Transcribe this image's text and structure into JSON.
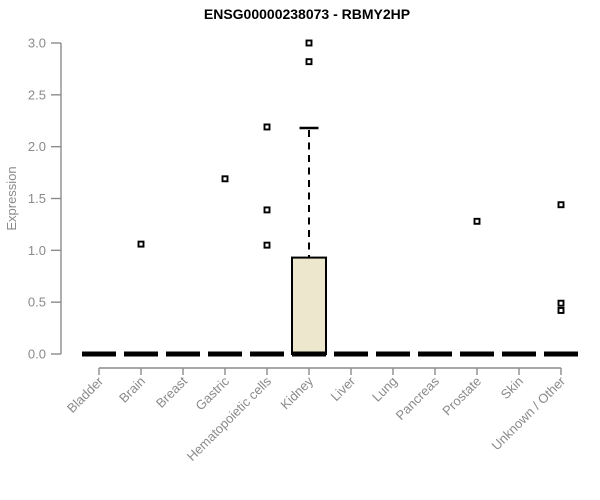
{
  "title": "ENSG00000238073 - RBMY2HP",
  "chart_data": {
    "type": "boxplot",
    "title": "ENSG00000238073 - RBMY2HP",
    "xlabel": "",
    "ylabel": "Expression",
    "ylim": [
      0,
      3.0
    ],
    "yticks": [
      "0.0",
      "0.5",
      "1.0",
      "1.5",
      "2.0",
      "2.5",
      "3.0"
    ],
    "ytick_values": [
      0.0,
      0.5,
      1.0,
      1.5,
      2.0,
      2.5,
      3.0
    ],
    "grid": "off",
    "legend": "none",
    "categories": [
      "Bladder",
      "Brain",
      "Breast",
      "Gastric",
      "Hematopoietic cells",
      "Kidney",
      "Liver",
      "Lung",
      "Pancreas",
      "Prostate",
      "Skin",
      "Unknown / Other"
    ],
    "boxes": [
      {
        "category": "Bladder",
        "q1": 0,
        "median": 0,
        "q3": 0,
        "whisker_low": 0,
        "whisker_high": 0,
        "outliers": []
      },
      {
        "category": "Brain",
        "q1": 0,
        "median": 0,
        "q3": 0,
        "whisker_low": 0,
        "whisker_high": 0,
        "outliers": [
          1.06
        ]
      },
      {
        "category": "Breast",
        "q1": 0,
        "median": 0,
        "q3": 0,
        "whisker_low": 0,
        "whisker_high": 0,
        "outliers": []
      },
      {
        "category": "Gastric",
        "q1": 0,
        "median": 0,
        "q3": 0,
        "whisker_low": 0,
        "whisker_high": 0,
        "outliers": [
          1.69
        ]
      },
      {
        "category": "Hematopoietic cells",
        "q1": 0,
        "median": 0,
        "q3": 0,
        "whisker_low": 0,
        "whisker_high": 0,
        "outliers": [
          2.19,
          1.39,
          1.05
        ]
      },
      {
        "category": "Kidney",
        "q1": 0,
        "median": 0,
        "q3": 0.93,
        "whisker_low": 0,
        "whisker_high": 2.18,
        "outliers": [
          2.82,
          3.0
        ]
      },
      {
        "category": "Liver",
        "q1": 0,
        "median": 0,
        "q3": 0,
        "whisker_low": 0,
        "whisker_high": 0,
        "outliers": []
      },
      {
        "category": "Lung",
        "q1": 0,
        "median": 0,
        "q3": 0,
        "whisker_low": 0,
        "whisker_high": 0,
        "outliers": []
      },
      {
        "category": "Pancreas",
        "q1": 0,
        "median": 0,
        "q3": 0,
        "whisker_low": 0,
        "whisker_high": 0,
        "outliers": []
      },
      {
        "category": "Prostate",
        "q1": 0,
        "median": 0,
        "q3": 0,
        "whisker_low": 0,
        "whisker_high": 0,
        "outliers": [
          1.28
        ]
      },
      {
        "category": "Skin",
        "q1": 0,
        "median": 0,
        "q3": 0,
        "whisker_low": 0,
        "whisker_high": 0,
        "outliers": []
      },
      {
        "category": "Unknown / Other",
        "q1": 0,
        "median": 0,
        "q3": 0,
        "whisker_low": 0,
        "whisker_high": 0,
        "outliers": [
          1.44,
          0.49,
          0.42
        ]
      }
    ],
    "colors": {
      "box_fill": "#ece7cd",
      "box_border": "#000000",
      "median": "#000000",
      "whisker": "#000000",
      "outlier_stroke": "#000000",
      "outlier_fill": "#ffffff",
      "axis": "#8b8b8b",
      "tick_label": "#8a8a8a",
      "title": "#000000",
      "background": "#ffffff"
    }
  }
}
